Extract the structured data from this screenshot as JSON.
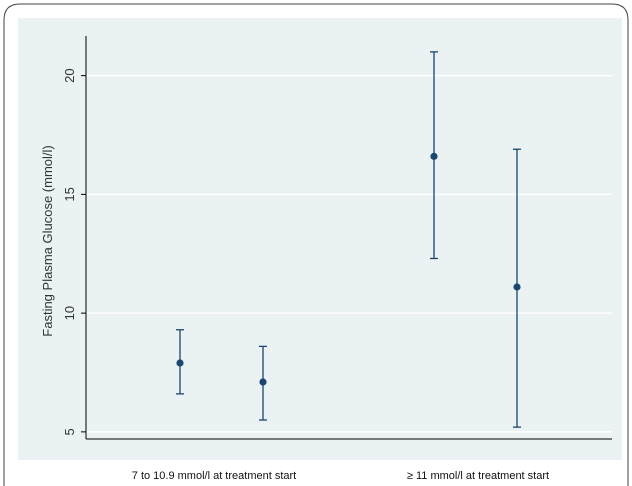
{
  "chart_data": {
    "type": "scatter",
    "title": "",
    "xlabel": "",
    "ylabel": "Fasting Plasma Glucose (mmol/l)",
    "ylim": [
      4.7,
      21.5
    ],
    "yticks": [
      5,
      10,
      15,
      20
    ],
    "grid": true,
    "categories": [
      "7 to 10.9 mmol/l at treatment start",
      "≥ 11 mmol/l at treatment start"
    ],
    "points": [
      {
        "category": "7 to 10.9 mmol/l at treatment start",
        "mean": 7.9,
        "lower": 6.6,
        "upper": 9.3
      },
      {
        "category": "7 to 10.9 mmol/l at treatment start",
        "mean": 7.1,
        "lower": 5.5,
        "upper": 8.6
      },
      {
        "category": "≥ 11 mmol/l at treatment start",
        "mean": 16.6,
        "lower": 12.3,
        "upper": 21.0
      },
      {
        "category": "≥ 11 mmol/l at treatment start",
        "mean": 11.1,
        "lower": 5.2,
        "upper": 16.9
      }
    ],
    "colors": {
      "plot_bg": "#eaf2f3",
      "grid": "#ffffff",
      "marker": "#1a476f",
      "axis": "#000000"
    }
  }
}
